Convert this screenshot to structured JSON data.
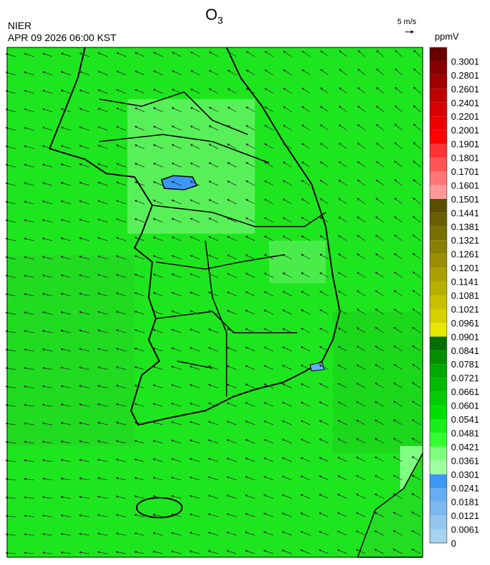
{
  "header": {
    "title": "O",
    "title_subscript": "3",
    "agency": "NIER",
    "datetime": "APR 09 2026 06:00 KST",
    "wind_scale": "5 m/s"
  },
  "colorbar": {
    "unit": "ppmV",
    "labels": [
      "0",
      "0.0061",
      "0.0121",
      "0.0181",
      "0.0241",
      "0.0301",
      "0.0361",
      "0.0421",
      "0.0481",
      "0.0541",
      "0.0601",
      "0.0661",
      "0.0721",
      "0.0781",
      "0.0841",
      "0.0901",
      "0.0961",
      "0.1021",
      "0.1081",
      "0.1141",
      "0.1201",
      "0.1261",
      "0.1321",
      "0.1381",
      "0.1441",
      "0.1501",
      "0.1601",
      "0.1701",
      "0.1801",
      "0.1901",
      "0.2001",
      "0.2201",
      "0.2401",
      "0.2601",
      "0.2801",
      "0.3001"
    ],
    "colors": [
      "#a8d2ee",
      "#93c6ee",
      "#7cb9ef",
      "#66adf1",
      "#3c98f5",
      "#a0ffa0",
      "#80ff80",
      "#33ff33",
      "#1aee1a",
      "#00e000",
      "#00cc00",
      "#00bb00",
      "#00a800",
      "#009000",
      "#007000",
      "#e8e800",
      "#d8d000",
      "#c8c000",
      "#b8b000",
      "#a8a000",
      "#989000",
      "#888000",
      "#787000",
      "#686000",
      "#585000",
      "#ff9999",
      "#ff7777",
      "#ff5555",
      "#ff3333",
      "#ff0000",
      "#ee0000",
      "#d80000",
      "#c00000",
      "#a00000",
      "#880000",
      "#6a0000"
    ]
  }
}
